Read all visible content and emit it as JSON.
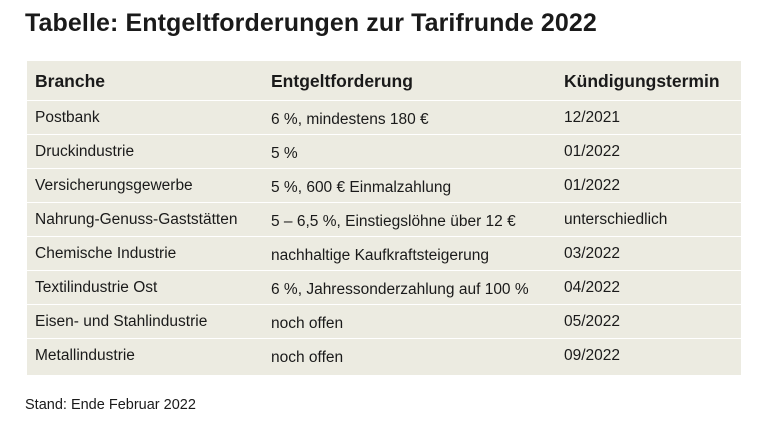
{
  "title": "Tabelle: Entgeltforderungen zur Tarifrunde 2022",
  "table": {
    "headers": [
      "Branche",
      "Entgeltforderung",
      "Kündigungstermin"
    ],
    "rows": [
      [
        "Postbank",
        "6 %, mindestens 180 €",
        "12/2021"
      ],
      [
        "Druckindustrie",
        "5 %",
        "01/2022"
      ],
      [
        "Versicherungsgewerbe",
        "5 %, 600 € Einmalzahlung",
        "01/2022"
      ],
      [
        "Nahrung-Genuss-Gaststätten",
        "5 – 6,5 %, Einstiegslöhne über 12 €",
        "unterschiedlich"
      ],
      [
        "Chemische Industrie",
        "nachhaltige Kaufkraftsteigerung",
        "03/2022"
      ],
      [
        "Textilindustrie Ost",
        "6 %, Jahressonderzahlung auf 100 %",
        "04/2022"
      ],
      [
        "Eisen- und Stahlindustrie",
        "noch offen",
        "05/2022"
      ],
      [
        "Metallindustrie",
        "noch offen",
        "09/2022"
      ]
    ]
  },
  "footnote": "Stand: Ende Februar 2022",
  "colors": {
    "table_background": "#ecebe1",
    "row_divider": "#ffffff",
    "text": "#1a1a1a"
  }
}
